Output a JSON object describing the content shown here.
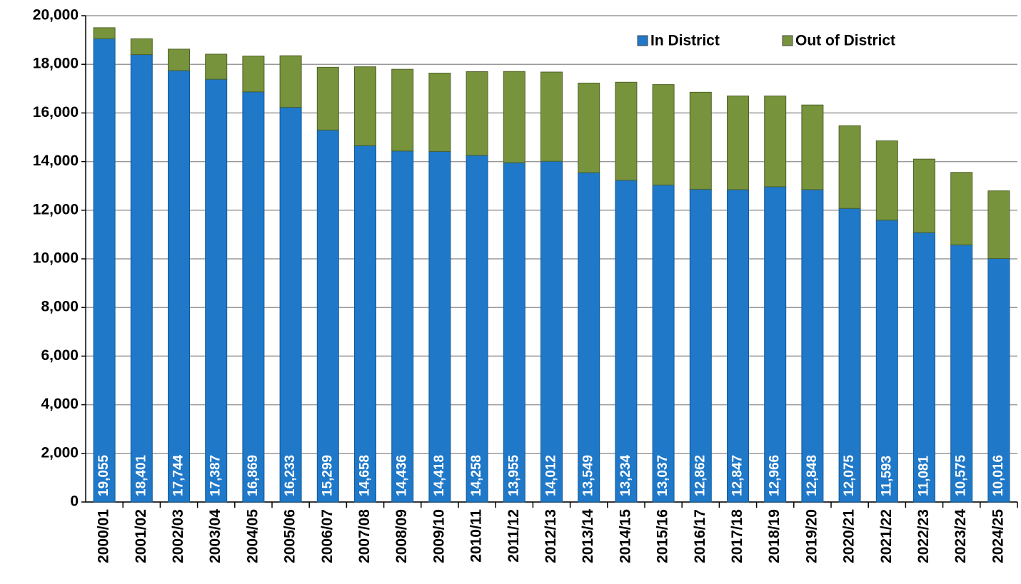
{
  "chart_data": {
    "type": "stacked_bar",
    "categories": [
      "2000/01",
      "2001/02",
      "2002/03",
      "2003/04",
      "2004/05",
      "2005/06",
      "2006/07",
      "2007/08",
      "2008/09",
      "2009/10",
      "2010/11",
      "2011/12",
      "2012/13",
      "2013/14",
      "2014/15",
      "2015/16",
      "2016/17",
      "2017/18",
      "2018/19",
      "2019/20",
      "2020/21",
      "2021/22",
      "2022/23",
      "2023/24",
      "2024/25"
    ],
    "series": [
      {
        "name": "In District",
        "color": "#1f78c8",
        "values": [
          19055,
          18401,
          17744,
          17387,
          16869,
          16233,
          15299,
          14658,
          14436,
          14418,
          14258,
          13955,
          14012,
          13549,
          13234,
          13037,
          12862,
          12847,
          12966,
          12848,
          12075,
          11593,
          11081,
          10575,
          10016
        ],
        "value_labels": [
          "19,055",
          "18,401",
          "17,744",
          "17,387",
          "16,869",
          "16,233",
          "15,299",
          "14,658",
          "14,436",
          "14,418",
          "14,258",
          "13,955",
          "14,012",
          "13,549",
          "13,234",
          "13,037",
          "12,862",
          "12,847",
          "12,966",
          "12,848",
          "12,075",
          "11,593",
          "11,081",
          "10,575",
          "10,016"
        ]
      },
      {
        "name": "Out of District",
        "color": "#77933c",
        "values": [
          450,
          650,
          880,
          1030,
          1470,
          2120,
          2580,
          3240,
          3360,
          3220,
          3440,
          3750,
          3670,
          3680,
          4030,
          4130,
          3990,
          3850,
          3730,
          3480,
          3400,
          3260,
          3020,
          2980,
          2780
        ]
      }
    ],
    "ylim": [
      0,
      20000
    ],
    "yticks": [
      0,
      {
        "value": 2000,
        "label": "2,000"
      },
      {
        "value": 4000,
        "label": "4,000"
      },
      {
        "value": 6000,
        "label": "6,000"
      },
      {
        "value": 8000,
        "label": "8,000"
      },
      {
        "value": 10000,
        "label": "10,000"
      },
      {
        "value": 12000,
        "label": "12,000"
      },
      {
        "value": 14000,
        "label": "14,000"
      },
      {
        "value": 16000,
        "label": "16,000"
      },
      {
        "value": 18000,
        "label": "18,000"
      },
      {
        "value": 20000,
        "label": "20,000"
      }
    ],
    "grid": true,
    "legend": "top-right"
  }
}
